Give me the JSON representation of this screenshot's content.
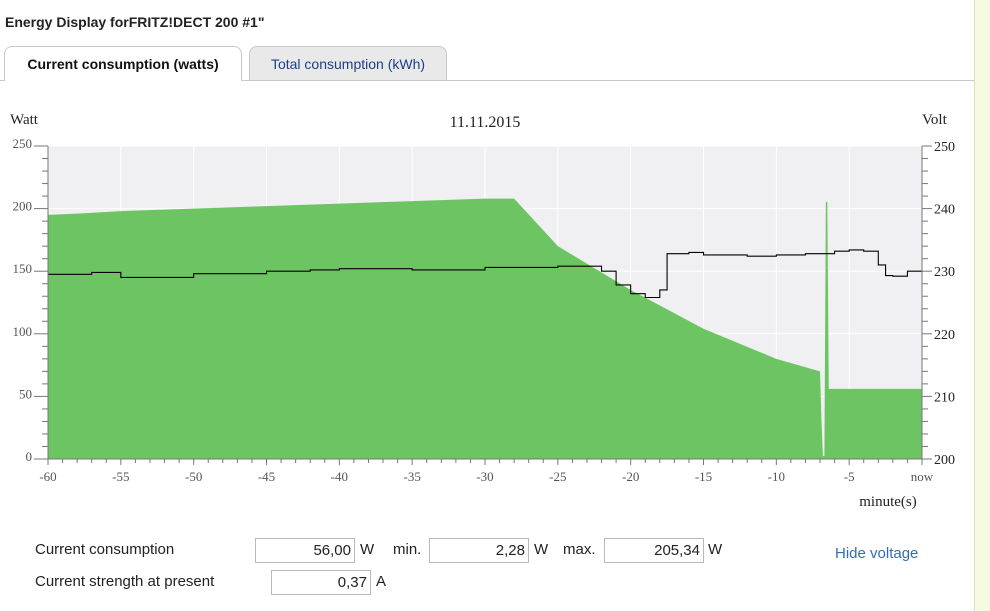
{
  "page": {
    "title": "Energy Display forFRITZ!DECT 200 #1\""
  },
  "tabs": [
    {
      "label": "Current consumption (watts)",
      "active": true
    },
    {
      "label": "Total consumption (kWh)",
      "active": false
    }
  ],
  "chart_data": {
    "type": "area",
    "title": "11.11.2015",
    "ylabel_left": "Watt",
    "ylabel_right": "Volt",
    "xlabel": "minute(s)",
    "xlim": [
      -60,
      0
    ],
    "ylim_left": [
      0,
      250
    ],
    "ylim_right": [
      200,
      250
    ],
    "x_ticks": [
      "-60",
      "-55",
      "-50",
      "-45",
      "-40",
      "-35",
      "-30",
      "-25",
      "-20",
      "-15",
      "-10",
      "-5",
      "now"
    ],
    "y_ticks_left": [
      "0",
      "50",
      "100",
      "150",
      "200",
      "250"
    ],
    "y_ticks_right": [
      "200",
      "210",
      "220",
      "230",
      "240",
      "250"
    ],
    "grid": true,
    "colors": {
      "power": "#6cc562",
      "voltage": "#000000",
      "plot_bg": "#f0f0f2",
      "grid": "#ffffff"
    },
    "series": [
      {
        "unit": "W",
        "x": [
          -60,
          -58,
          -55,
          -50,
          -45,
          -40,
          -35,
          -30,
          -28,
          -25,
          -20,
          -15,
          -10,
          -7,
          -6.9,
          -6.8,
          -6.7,
          -6.6,
          -6.5,
          -6.4,
          -6.3,
          -6.2,
          -5,
          0
        ],
        "values": [
          195,
          196,
          198,
          200,
          202,
          204,
          206,
          208,
          208,
          170,
          135,
          104,
          80,
          70,
          30,
          2.28,
          2.28,
          205.34,
          205.34,
          56,
          56,
          56,
          56,
          56
        ]
      },
      {
        "unit": "V",
        "x": [
          -60,
          -57,
          -55,
          -50,
          -45,
          -42,
          -40,
          -35,
          -30,
          -25,
          -22,
          -21,
          -20,
          -19,
          -18,
          -17.5,
          -16,
          -15,
          -12,
          -10,
          -8,
          -6,
          -5,
          -4,
          -3,
          -2.5,
          -2,
          -1,
          0
        ],
        "values": [
          229.5,
          229.8,
          229,
          229.6,
          230,
          230.2,
          230.4,
          230.2,
          230.6,
          230.8,
          230,
          227.8,
          226.4,
          225.8,
          227,
          232.8,
          233,
          232.6,
          232.4,
          232.6,
          232.8,
          233.2,
          233.4,
          233.2,
          231,
          229.3,
          229.2,
          230,
          230
        ]
      }
    ]
  },
  "readings": {
    "current_consumption_label": "Current consumption",
    "current_value": "56,00",
    "current_unit": "W",
    "min_label": "min.",
    "min_value": "2,28",
    "min_unit": "W",
    "max_label": "max.",
    "max_value": "205,34",
    "max_unit": "W",
    "strength_label": "Current strength at present",
    "strength_value": "0,37",
    "strength_unit": "A"
  },
  "hide_voltage_label": "Hide voltage"
}
